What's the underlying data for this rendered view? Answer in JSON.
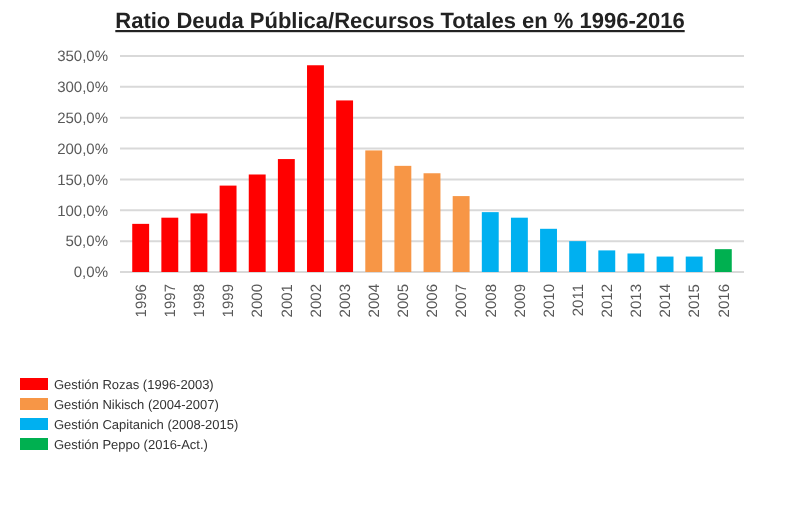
{
  "chart_data": {
    "type": "bar",
    "title": "Ratio Deuda Pública/Recursos Totales en % 1996-2016",
    "categories": [
      "1996",
      "1997",
      "1998",
      "1999",
      "2000",
      "2001",
      "2002",
      "2003",
      "2004",
      "2005",
      "2006",
      "2007",
      "2008",
      "2009",
      "2010",
      "2011",
      "2012",
      "2013",
      "2014",
      "2015",
      "2016"
    ],
    "stacked": true,
    "series": [
      {
        "name": "Gestión Rozas (1996-2003)",
        "color": "#ff0000",
        "values": [
          78,
          88,
          95,
          140,
          158,
          183,
          335,
          278,
          null,
          null,
          null,
          null,
          null,
          null,
          null,
          null,
          null,
          null,
          null,
          null,
          null
        ]
      },
      {
        "name": "Gestión Nikisch (2004-2007)",
        "color": "#f79646",
        "values": [
          null,
          null,
          null,
          null,
          null,
          null,
          null,
          null,
          197,
          172,
          160,
          123,
          null,
          null,
          null,
          null,
          null,
          null,
          null,
          null,
          null
        ]
      },
      {
        "name": "Gestión Capitanich (2008-2015)",
        "color": "#00b0f0",
        "values": [
          null,
          null,
          null,
          null,
          null,
          null,
          null,
          null,
          null,
          null,
          null,
          null,
          97,
          88,
          70,
          50,
          35,
          30,
          25,
          25,
          null
        ]
      },
      {
        "name": "Gestión Peppo (2016-Act.)",
        "color": "#00b050",
        "values": [
          null,
          null,
          null,
          null,
          null,
          null,
          null,
          null,
          null,
          null,
          null,
          null,
          null,
          null,
          null,
          null,
          null,
          null,
          null,
          null,
          37
        ]
      }
    ],
    "ylim": [
      0,
      350
    ],
    "yticks": [
      {
        "value": 0,
        "label": "0,0%"
      },
      {
        "value": 50,
        "label": "50,0%"
      },
      {
        "value": 100,
        "label": "100,0%"
      },
      {
        "value": 150,
        "label": "150,0%"
      },
      {
        "value": 200,
        "label": "200,0%"
      },
      {
        "value": 250,
        "label": "250,0%"
      },
      {
        "value": 300,
        "label": "300,0%"
      },
      {
        "value": 350,
        "label": "350,0%"
      }
    ],
    "grid": "y",
    "legend": "bottom left"
  }
}
